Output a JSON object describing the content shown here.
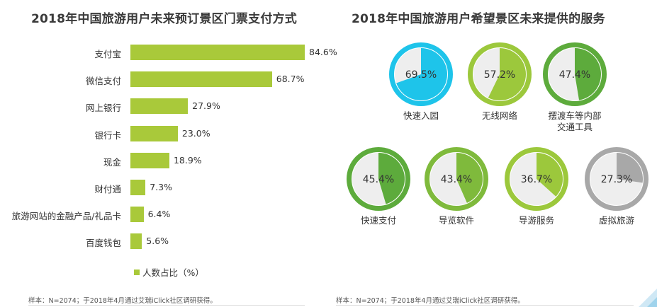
{
  "left_chart": {
    "title": "2018年中国旅游用户未来预订景区门票支付方式",
    "legend": "人数占比（%）",
    "footnote": "样本：N=2074；于2018年4月通过艾瑞iClick社区调研获得。"
  },
  "right_chart": {
    "title": "2018年中国旅游用户希望景区未来提供的服务",
    "footnote": "样本：N=2074；于2018年4月通过艾瑞iClick社区调研获得。"
  },
  "colors": {
    "bar": "#a9c93a",
    "track": "#eeeeee",
    "cyan": "#1ec4ea",
    "lime": "#9cc83c",
    "green": "#5dab3c",
    "gray": "#a8a8a8"
  },
  "chart_data": [
    {
      "type": "bar",
      "orientation": "horizontal",
      "categories": [
        "支付宝",
        "微信支付",
        "网上银行",
        "银行卡",
        "现金",
        "财付通",
        "旅游网站的金融产品/礼品卡",
        "百度钱包"
      ],
      "values": [
        84.6,
        68.7,
        27.9,
        23.0,
        18.9,
        7.3,
        6.4,
        5.6
      ],
      "value_labels": [
        "84.6%",
        "68.7%",
        "27.9%",
        "23.0%",
        "18.9%",
        "7.3%",
        "6.4%",
        "5.6%"
      ],
      "title": "2018年中国旅游用户未来预订景区门票支付方式",
      "series": [
        {
          "name": "人数占比（%）",
          "values": [
            84.6,
            68.7,
            27.9,
            23.0,
            18.9,
            7.3,
            6.4,
            5.6
          ]
        }
      ],
      "legend": "bottom",
      "grid": false
    },
    {
      "type": "pie",
      "variant": "donut-gauge",
      "categories": [
        "快速入园",
        "无线网络",
        "摆渡车等内部交通工具",
        "快速支付",
        "导览软件",
        "导游服务",
        "虚拟旅游"
      ],
      "display_labels": [
        [
          "快速入园"
        ],
        [
          "无线网络"
        ],
        [
          "摆渡车等内部",
          "交通工具"
        ],
        [
          "快速支付"
        ],
        [
          "导览软件"
        ],
        [
          "导游服务"
        ],
        [
          "虚拟旅游"
        ]
      ],
      "values": [
        69.5,
        57.2,
        47.4,
        45.4,
        43.4,
        36.7,
        27.3
      ],
      "value_labels": [
        "69.5%",
        "57.2%",
        "47.4%",
        "45.4%",
        "43.4%",
        "36.7%",
        "27.3%"
      ],
      "colors": [
        "#1ec4ea",
        "#9cc83c",
        "#5dab3c",
        "#5dab3c",
        "#7fba3c",
        "#9cc83c",
        "#a8a8a8"
      ],
      "title": "2018年中国旅游用户希望景区未来提供的服务"
    }
  ]
}
